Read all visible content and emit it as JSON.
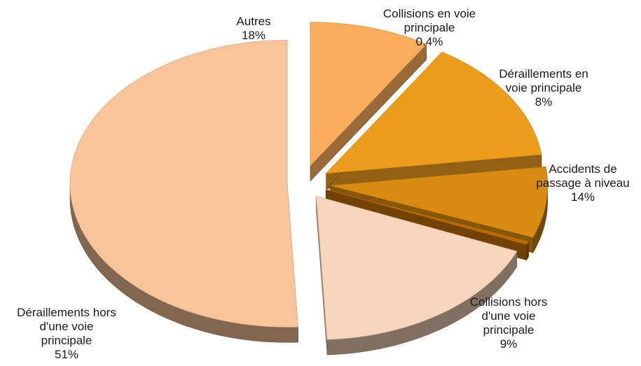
{
  "chart_data": {
    "type": "pie",
    "title": "",
    "slices": [
      {
        "lines": [
          "Déraillements hors",
          "d'une voie",
          "principale"
        ],
        "percent_label": "51%",
        "value": 51,
        "color": "#F9C49B"
      },
      {
        "lines": [
          "Autres"
        ],
        "percent_label": "18%",
        "value": 18,
        "color": "#F8D5BC"
      },
      {
        "lines": [
          "Collisions en voie",
          "principale"
        ],
        "percent_label": "0.4%",
        "value": 0.4,
        "color": "#B86A08"
      },
      {
        "lines": [
          "Déraillements en",
          "voie principale"
        ],
        "percent_label": "8%",
        "value": 8,
        "color": "#D88A12"
      },
      {
        "lines": [
          "Accidents de",
          "passage à niveau"
        ],
        "percent_label": "14%",
        "value": 14,
        "color": "#EC9D1E"
      },
      {
        "lines": [
          "Collisions hors",
          "d'une voie",
          "principale"
        ],
        "percent_label": "9%",
        "value": 9,
        "color": "#F8AC5C"
      }
    ]
  }
}
